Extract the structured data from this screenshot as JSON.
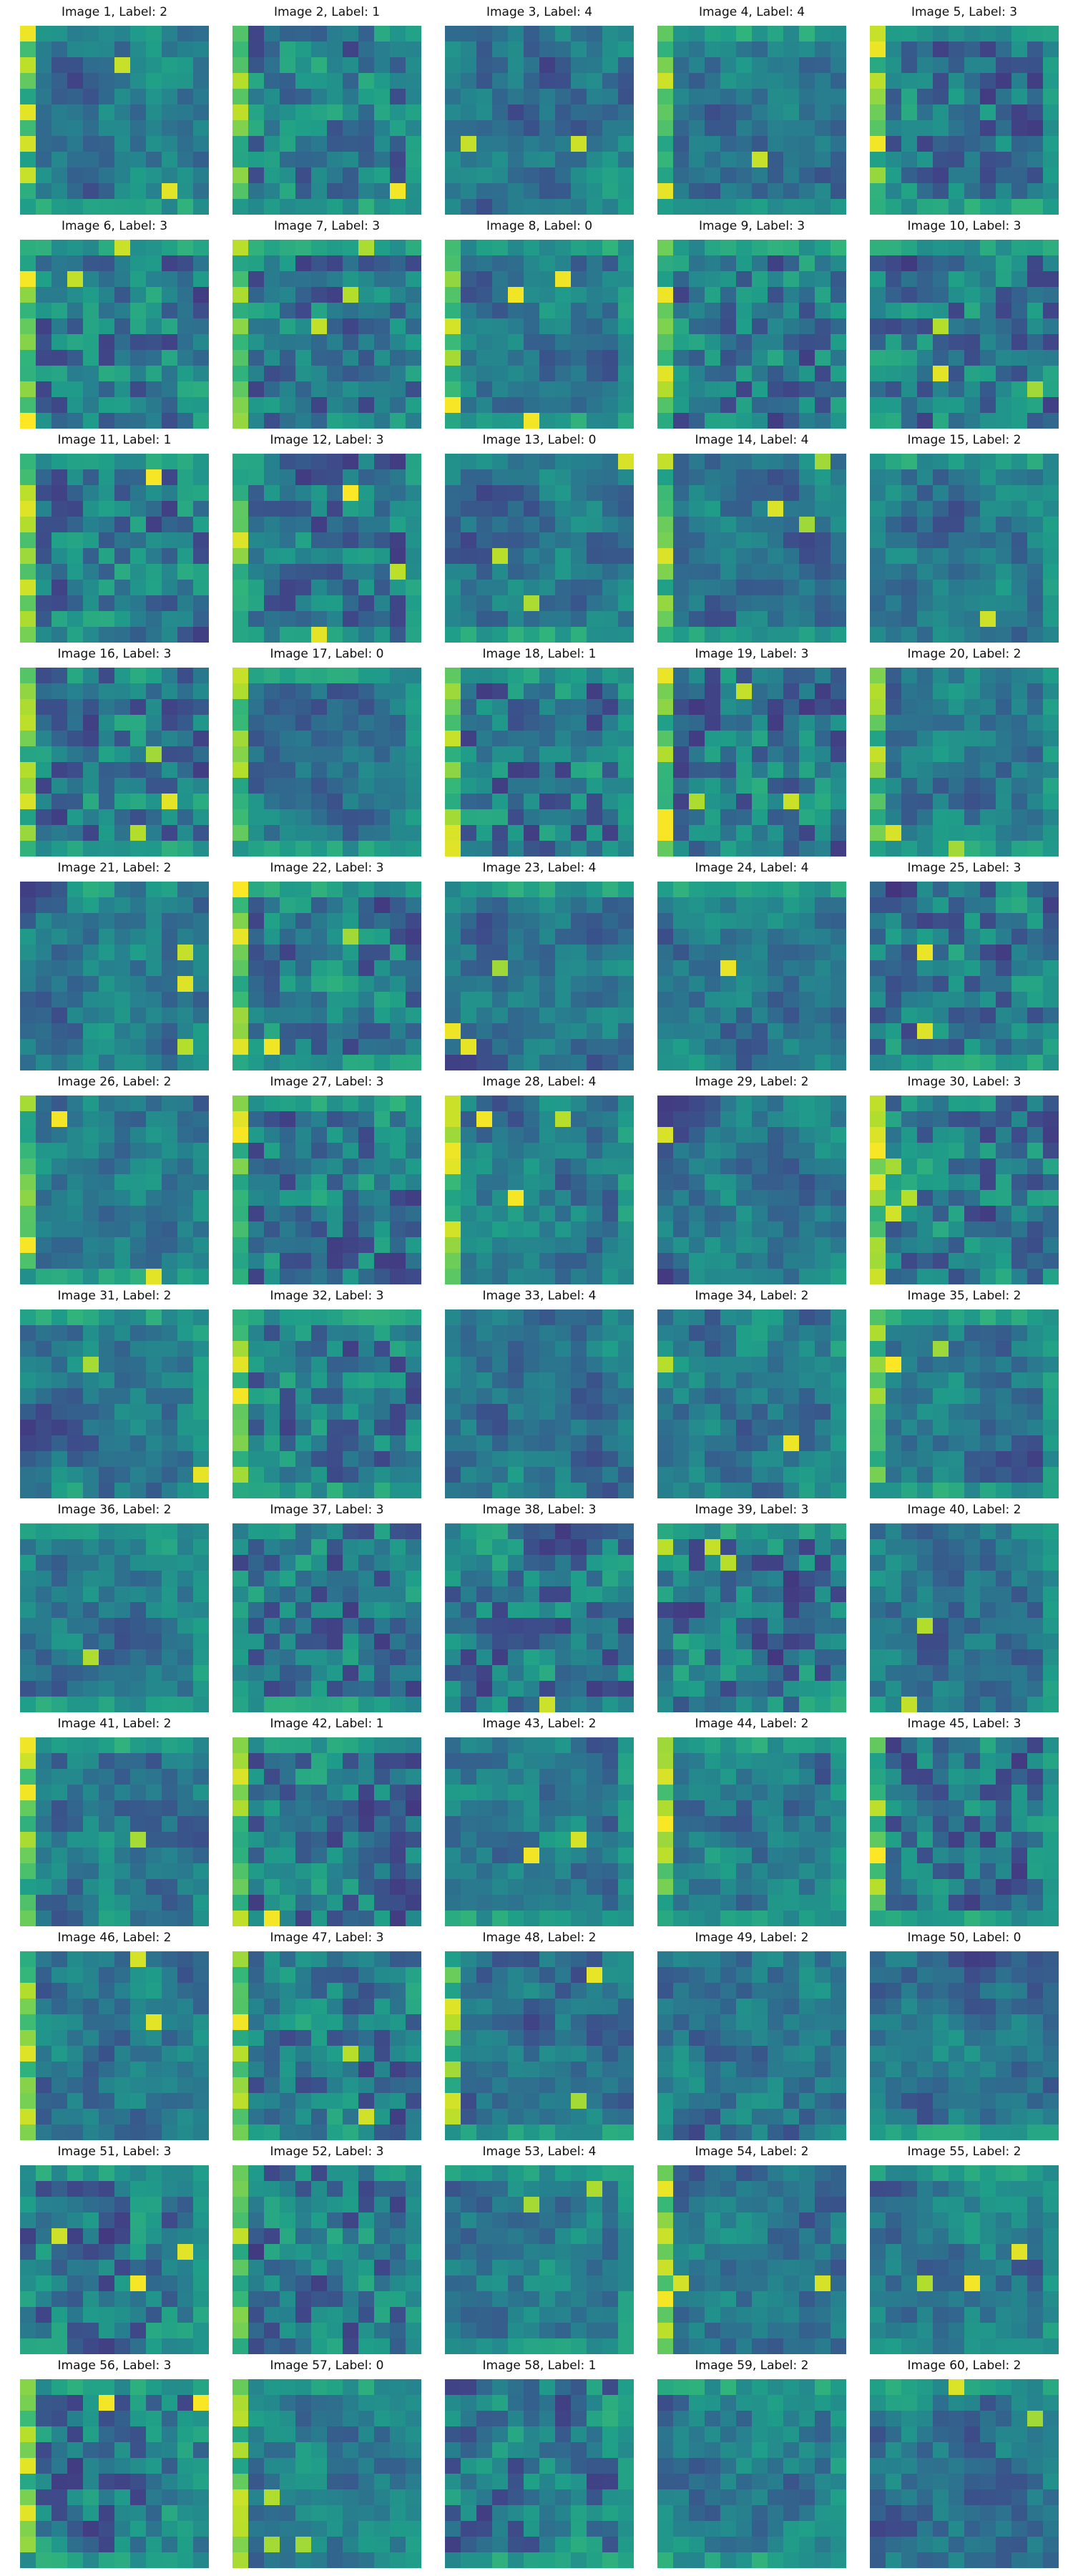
{
  "colormap": "viridis",
  "colormap_stops": [
    "#440154",
    "#482878",
    "#3e4989",
    "#31688e",
    "#26828e",
    "#1f9e89",
    "#35b779",
    "#6ece58",
    "#b5de2b",
    "#fde725"
  ],
  "chart_data": {
    "type": "heatmap",
    "description": "Grid of 60 image thumbnails (12 rows x 5 columns), each a low-resolution heatmap with a title 'Image N, Label: L'",
    "grid": {
      "rows": 12,
      "cols": 5
    },
    "images": [
      {
        "index": 1,
        "label": 2,
        "title": "Image 1, Label: 2"
      },
      {
        "index": 2,
        "label": 1,
        "title": "Image 2, Label: 1"
      },
      {
        "index": 3,
        "label": 4,
        "title": "Image 3, Label: 4"
      },
      {
        "index": 4,
        "label": 4,
        "title": "Image 4, Label: 4"
      },
      {
        "index": 5,
        "label": 3,
        "title": "Image 5, Label: 3"
      },
      {
        "index": 6,
        "label": 3,
        "title": "Image 6, Label: 3"
      },
      {
        "index": 7,
        "label": 3,
        "title": "Image 7, Label: 3"
      },
      {
        "index": 8,
        "label": 0,
        "title": "Image 8, Label: 0"
      },
      {
        "index": 9,
        "label": 3,
        "title": "Image 9, Label: 3"
      },
      {
        "index": 10,
        "label": 3,
        "title": "Image 10, Label: 3"
      },
      {
        "index": 11,
        "label": 1,
        "title": "Image 11, Label: 1"
      },
      {
        "index": 12,
        "label": 3,
        "title": "Image 12, Label: 3"
      },
      {
        "index": 13,
        "label": 0,
        "title": "Image 13, Label: 0"
      },
      {
        "index": 14,
        "label": 4,
        "title": "Image 14, Label: 4"
      },
      {
        "index": 15,
        "label": 2,
        "title": "Image 15, Label: 2"
      },
      {
        "index": 16,
        "label": 3,
        "title": "Image 16, Label: 3"
      },
      {
        "index": 17,
        "label": 0,
        "title": "Image 17, Label: 0"
      },
      {
        "index": 18,
        "label": 1,
        "title": "Image 18, Label: 1"
      },
      {
        "index": 19,
        "label": 3,
        "title": "Image 19, Label: 3"
      },
      {
        "index": 20,
        "label": 2,
        "title": "Image 20, Label: 2"
      },
      {
        "index": 21,
        "label": 2,
        "title": "Image 21, Label: 2"
      },
      {
        "index": 22,
        "label": 3,
        "title": "Image 22, Label: 3"
      },
      {
        "index": 23,
        "label": 4,
        "title": "Image 23, Label: 4"
      },
      {
        "index": 24,
        "label": 4,
        "title": "Image 24, Label: 4"
      },
      {
        "index": 25,
        "label": 3,
        "title": "Image 25, Label: 3"
      },
      {
        "index": 26,
        "label": 2,
        "title": "Image 26, Label: 2"
      },
      {
        "index": 27,
        "label": 3,
        "title": "Image 27, Label: 3"
      },
      {
        "index": 28,
        "label": 4,
        "title": "Image 28, Label: 4"
      },
      {
        "index": 29,
        "label": 2,
        "title": "Image 29, Label: 2"
      },
      {
        "index": 30,
        "label": 3,
        "title": "Image 30, Label: 3"
      },
      {
        "index": 31,
        "label": 2,
        "title": "Image 31, Label: 2"
      },
      {
        "index": 32,
        "label": 3,
        "title": "Image 32, Label: 3"
      },
      {
        "index": 33,
        "label": 4,
        "title": "Image 33, Label: 4"
      },
      {
        "index": 34,
        "label": 2,
        "title": "Image 34, Label: 2"
      },
      {
        "index": 35,
        "label": 2,
        "title": "Image 35, Label: 2"
      },
      {
        "index": 36,
        "label": 2,
        "title": "Image 36, Label: 2"
      },
      {
        "index": 37,
        "label": 3,
        "title": "Image 37, Label: 3"
      },
      {
        "index": 38,
        "label": 3,
        "title": "Image 38, Label: 3"
      },
      {
        "index": 39,
        "label": 3,
        "title": "Image 39, Label: 3"
      },
      {
        "index": 40,
        "label": 2,
        "title": "Image 40, Label: 2"
      },
      {
        "index": 41,
        "label": 2,
        "title": "Image 41, Label: 2"
      },
      {
        "index": 42,
        "label": 1,
        "title": "Image 42, Label: 1"
      },
      {
        "index": 43,
        "label": 2,
        "title": "Image 43, Label: 2"
      },
      {
        "index": 44,
        "label": 2,
        "title": "Image 44, Label: 2"
      },
      {
        "index": 45,
        "label": 3,
        "title": "Image 45, Label: 3"
      },
      {
        "index": 46,
        "label": 2,
        "title": "Image 46, Label: 2"
      },
      {
        "index": 47,
        "label": 3,
        "title": "Image 47, Label: 3"
      },
      {
        "index": 48,
        "label": 2,
        "title": "Image 48, Label: 2"
      },
      {
        "index": 49,
        "label": 2,
        "title": "Image 49, Label: 2"
      },
      {
        "index": 50,
        "label": 0,
        "title": "Image 50, Label: 0"
      },
      {
        "index": 51,
        "label": 3,
        "title": "Image 51, Label: 3"
      },
      {
        "index": 52,
        "label": 3,
        "title": "Image 52, Label: 3"
      },
      {
        "index": 53,
        "label": 4,
        "title": "Image 53, Label: 4"
      },
      {
        "index": 54,
        "label": 2,
        "title": "Image 54, Label: 2"
      },
      {
        "index": 55,
        "label": 2,
        "title": "Image 55, Label: 2"
      },
      {
        "index": 56,
        "label": 3,
        "title": "Image 56, Label: 3"
      },
      {
        "index": 57,
        "label": 0,
        "title": "Image 57, Label: 0"
      },
      {
        "index": 58,
        "label": 1,
        "title": "Image 58, Label: 1"
      },
      {
        "index": 59,
        "label": 2,
        "title": "Image 59, Label: 2"
      },
      {
        "index": 60,
        "label": 2,
        "title": "Image 60, Label: 2"
      }
    ]
  }
}
